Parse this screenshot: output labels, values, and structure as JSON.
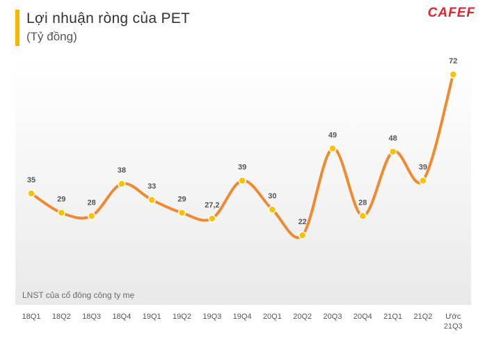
{
  "header": {
    "title": "Lợi nhuận ròng của PET",
    "subtitle": "(Tỷ đồng)",
    "logo_text": "CAFEF"
  },
  "note": "LNST của cổ đông công ty mẹ",
  "colors": {
    "accent": "#f7b500",
    "line": "#f08a30",
    "marker": "#ffc000",
    "logo": "#e0262b"
  },
  "chart_data": {
    "type": "line",
    "title": "Lợi nhuận ròng của PET",
    "ylabel": "(Tỷ đồng)",
    "xlabel": "",
    "categories": [
      "18Q1",
      "18Q2",
      "18Q3",
      "18Q4",
      "19Q1",
      "19Q2",
      "19Q3",
      "19Q4",
      "20Q1",
      "20Q2",
      "20Q3",
      "20Q4",
      "21Q1",
      "21Q2",
      "Ước\n21Q3"
    ],
    "series": [
      {
        "values": [
          35,
          29,
          28,
          38,
          33,
          29,
          27.2,
          39,
          30,
          22,
          49,
          28,
          48,
          39,
          72
        ],
        "labels": [
          "35",
          "29",
          "28",
          "38",
          "33",
          "29",
          "27,2",
          "39",
          "30",
          "22",
          "49",
          "28",
          "48",
          "39",
          "72"
        ]
      }
    ],
    "smooth": true,
    "grid": false,
    "legend": "none"
  }
}
